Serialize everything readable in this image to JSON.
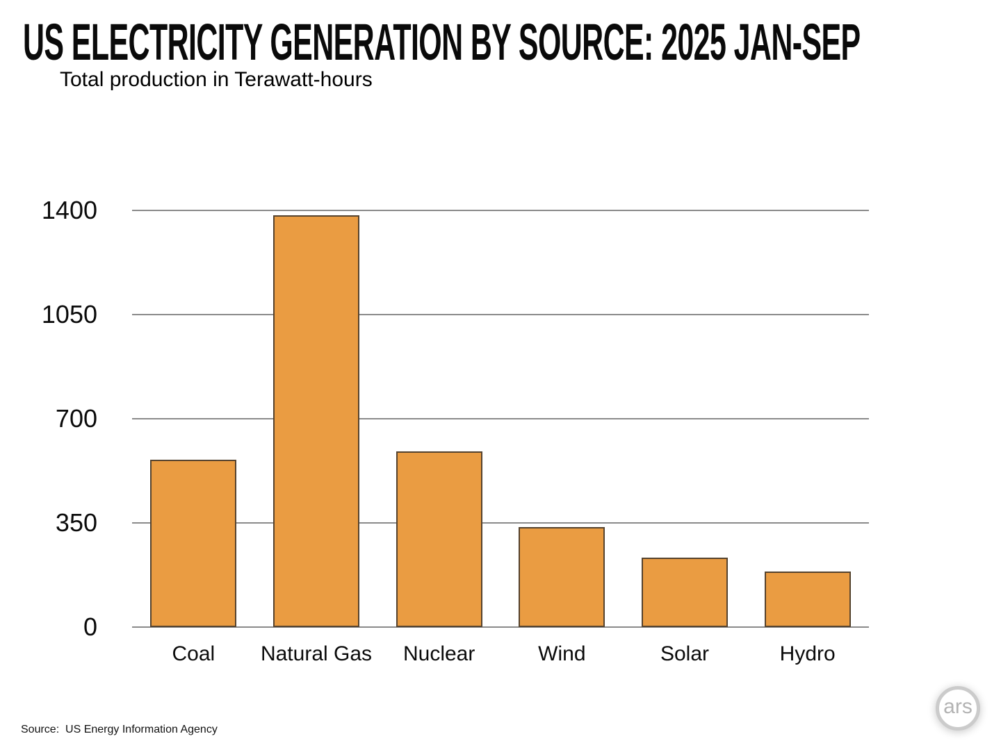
{
  "header": {
    "title": "US ELECTRICITY GENERATION BY SOURCE: 2025 JAN-SEP",
    "subtitle": "Total production in Terawatt-hours"
  },
  "footer": {
    "source": "Source:  US Energy Information Agency",
    "logo_text": "ars"
  },
  "chart_data": {
    "type": "bar",
    "title": "US ELECTRICITY GENERATION BY SOURCE: 2025 JAN-SEP",
    "subtitle": "Total production in Terawatt-hours",
    "categories": [
      "Coal",
      "Natural Gas",
      "Nuclear",
      "Wind",
      "Solar",
      "Hydro"
    ],
    "values": [
      563,
      1384,
      590,
      335,
      234,
      187
    ],
    "xlabel": "",
    "ylabel": "Terawatt-hours",
    "ylim": [
      0,
      1400
    ],
    "yticks": [
      0,
      350,
      700,
      1050,
      1400
    ],
    "grid": true,
    "legend": false,
    "bar_color": "#EA9C42",
    "bar_border_color": "#54422E",
    "gridline_color": "#8A8A8A"
  }
}
